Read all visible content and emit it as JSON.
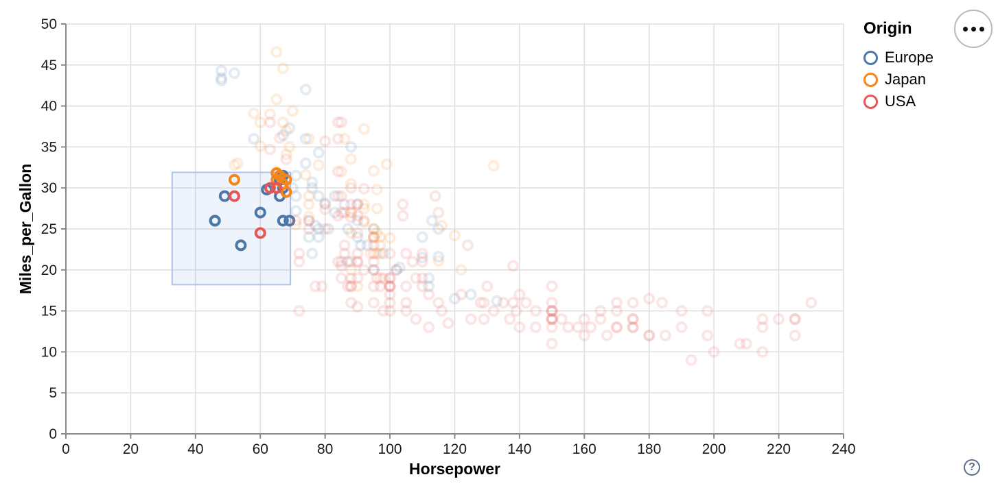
{
  "chart_data": {
    "type": "scatter",
    "title": "",
    "xlabel": "Horsepower",
    "ylabel": "Miles_per_Gallon",
    "xlim": [
      0,
      240
    ],
    "ylim": [
      0,
      50
    ],
    "x_ticks": [
      0,
      20,
      40,
      60,
      80,
      100,
      120,
      140,
      160,
      180,
      200,
      220,
      240
    ],
    "y_ticks": [
      0,
      5,
      10,
      15,
      20,
      25,
      30,
      35,
      40,
      45,
      50
    ],
    "grid": true,
    "point_style": {
      "shape": "circle-stroke",
      "radius": 6.5,
      "stroke_width": 4,
      "faded_opacity": 0.15,
      "selected_opacity": 1
    },
    "colors": {
      "grid": "#dddddd",
      "axis": "#888888",
      "tick_label": "#1b1b1b",
      "brush_fill": "rgba(120,160,230,0.12)",
      "brush_stroke": "#aec3ec"
    },
    "brush_selection": {
      "hp_range": [
        32.8,
        69.3
      ],
      "mpg_range": [
        18.2,
        31.9
      ]
    },
    "legend": {
      "title": "Origin",
      "position": "top-right",
      "entries": [
        {
          "label": "Europe",
          "color": "#4c78a8"
        },
        {
          "label": "Japan",
          "color": "#f58518"
        },
        {
          "label": "USA",
          "color": "#e45756"
        }
      ]
    },
    "series": [
      {
        "name": "Europe",
        "color": "#4c78a8",
        "points": [
          [
            46,
            26
          ],
          [
            87,
            25
          ],
          [
            90,
            24
          ],
          [
            95,
            25
          ],
          [
            113,
            26
          ],
          [
            90,
            28
          ],
          [
            70,
            30
          ],
          [
            76,
            30
          ],
          [
            60,
            27
          ],
          [
            54,
            23
          ],
          [
            112,
            18
          ],
          [
            76,
            22
          ],
          [
            87,
            21
          ],
          [
            69,
            26
          ],
          [
            90,
            26
          ],
          [
            49,
            29
          ],
          [
            75,
            24
          ],
          [
            95,
            20
          ],
          [
            112,
            19
          ],
          [
            110,
            24
          ],
          [
            46,
            26
          ],
          [
            83,
            29
          ],
          [
            67,
            26
          ],
          [
            78,
            24
          ],
          [
            66,
            29
          ],
          [
            75,
            26
          ],
          [
            66,
            31
          ],
          [
            78,
            25
          ],
          [
            98,
            22
          ],
          [
            115,
            25
          ],
          [
            86,
            28
          ],
          [
            81,
            25
          ],
          [
            93,
            23
          ],
          [
            83,
            27
          ],
          [
            71,
            29
          ],
          [
            91,
            23
          ],
          [
            120,
            16.5
          ],
          [
            58,
            36
          ],
          [
            78,
            29
          ],
          [
            115,
            21.6
          ],
          [
            110,
            21.5
          ],
          [
            48,
            43.1
          ],
          [
            103,
            20.3
          ],
          [
            125,
            17
          ],
          [
            48,
            43.4
          ],
          [
            48,
            44.3
          ],
          [
            133,
            16.2
          ],
          [
            71,
            31.5
          ],
          [
            62,
            29.8
          ],
          [
            78,
            34.3
          ],
          [
            69,
            37.3
          ],
          [
            52,
            44
          ],
          [
            67,
            30
          ],
          [
            88,
            35
          ],
          [
            74,
            33
          ],
          [
            80,
            28.1
          ],
          [
            76,
            30.7
          ],
          [
            74,
            36
          ],
          [
            71,
            27.2
          ],
          [
            77,
            25.4
          ],
          [
            67,
            36.4
          ],
          [
            74,
            42
          ],
          [
            102,
            20
          ],
          [
            67,
            31.5
          ]
        ]
      },
      {
        "name": "Japan",
        "color": "#f58518",
        "points": [
          [
            88,
            27
          ],
          [
            95,
            24
          ],
          [
            88,
            27
          ],
          [
            95,
            25
          ],
          [
            65,
            31
          ],
          [
            69,
            35
          ],
          [
            95,
            24
          ],
          [
            92,
            28
          ],
          [
            97,
            23
          ],
          [
            97,
            19
          ],
          [
            88,
            20
          ],
          [
            94,
            22
          ],
          [
            90,
            18
          ],
          [
            122,
            20
          ],
          [
            65,
            32
          ],
          [
            97,
            24
          ],
          [
            53,
            33
          ],
          [
            75,
            29
          ],
          [
            96,
            22
          ],
          [
            71,
            25.5
          ],
          [
            52,
            32.8
          ],
          [
            65,
            46.6
          ],
          [
            67,
            44.6
          ],
          [
            65,
            40.8
          ],
          [
            70,
            39.4
          ],
          [
            68,
            29.5
          ],
          [
            115,
            21.1
          ],
          [
            132,
            32.7
          ],
          [
            100,
            23.9
          ],
          [
            74,
            31.6
          ],
          [
            60,
            35.1
          ],
          [
            67,
            38
          ],
          [
            75,
            36
          ],
          [
            116,
            25.4
          ],
          [
            96,
            29.8
          ],
          [
            75,
            26.5
          ],
          [
            67,
            30.5
          ],
          [
            66,
            31.5
          ],
          [
            68,
            31
          ],
          [
            65,
            31.8
          ],
          [
            52,
            31
          ],
          [
            58,
            39.1
          ],
          [
            63,
            39
          ],
          [
            60,
            38
          ],
          [
            96,
            24.5
          ],
          [
            97,
            22
          ],
          [
            68,
            37
          ],
          [
            88,
            30.5
          ],
          [
            85,
            32
          ],
          [
            92,
            27.5
          ],
          [
            75,
            28
          ],
          [
            88,
            24.5
          ],
          [
            92,
            25.8
          ],
          [
            120,
            24.2
          ],
          [
            68,
            34.1
          ],
          [
            78,
            32.8
          ],
          [
            99,
            32.9
          ],
          [
            95,
            32.1
          ],
          [
            96,
            27.5
          ],
          [
            92,
            37.2
          ],
          [
            86,
            36
          ],
          [
            88,
            33.5
          ]
        ]
      },
      {
        "name": "USA",
        "color": "#e45756",
        "points": [
          [
            130,
            18
          ],
          [
            165,
            15
          ],
          [
            150,
            18
          ],
          [
            150,
            16
          ],
          [
            140,
            17
          ],
          [
            198,
            15
          ],
          [
            220,
            14
          ],
          [
            215,
            14
          ],
          [
            225,
            14
          ],
          [
            190,
            15
          ],
          [
            170,
            15
          ],
          [
            160,
            14
          ],
          [
            150,
            15
          ],
          [
            225,
            14
          ],
          [
            175,
            14
          ],
          [
            153,
            14
          ],
          [
            175,
            13
          ],
          [
            170,
            13
          ],
          [
            180,
            12
          ],
          [
            165,
            14
          ],
          [
            208,
            11
          ],
          [
            155,
            13
          ],
          [
            160,
            12
          ],
          [
            190,
            13
          ],
          [
            150,
            14
          ],
          [
            167,
            12
          ],
          [
            170,
            13
          ],
          [
            180,
            12
          ],
          [
            150,
            11
          ],
          [
            230,
            16
          ],
          [
            215,
            10
          ],
          [
            200,
            10
          ],
          [
            210,
            11
          ],
          [
            193,
            9
          ],
          [
            225,
            12
          ],
          [
            215,
            13
          ],
          [
            198,
            12
          ],
          [
            158,
            13
          ],
          [
            150,
            13
          ],
          [
            145,
            13
          ],
          [
            137,
            14
          ],
          [
            150,
            15
          ],
          [
            140,
            13
          ],
          [
            150,
            14
          ],
          [
            145,
            15
          ],
          [
            175,
            13
          ],
          [
            175,
            14
          ],
          [
            150,
            14
          ],
          [
            150,
            15
          ],
          [
            142,
            16
          ],
          [
            97,
            18
          ],
          [
            85,
            21
          ],
          [
            95,
            22
          ],
          [
            95,
            24
          ],
          [
            90,
            21
          ],
          [
            100,
            19
          ],
          [
            105,
            16
          ],
          [
            100,
            17
          ],
          [
            88,
            19
          ],
          [
            100,
            18
          ],
          [
            110,
            18
          ],
          [
            72,
            22
          ],
          [
            100,
            19
          ],
          [
            88,
            18
          ],
          [
            86,
            23
          ],
          [
            71,
            26
          ],
          [
            80,
            25
          ],
          [
            90,
            28
          ],
          [
            86,
            22
          ],
          [
            80,
            28
          ],
          [
            105,
            18
          ],
          [
            100,
            16
          ],
          [
            100,
            18
          ],
          [
            88,
            18
          ],
          [
            95,
            23
          ],
          [
            100,
            18
          ],
          [
            90,
            21
          ],
          [
            85,
            19
          ],
          [
            107,
            21
          ],
          [
            72,
            21
          ],
          [
            75,
            25
          ],
          [
            95,
            18
          ],
          [
            110,
            19
          ],
          [
            105,
            22
          ],
          [
            100,
            22
          ],
          [
            98,
            19
          ],
          [
            95,
            21
          ],
          [
            102,
            20
          ],
          [
            108,
            19
          ],
          [
            110,
            21
          ],
          [
            110,
            22
          ],
          [
            88,
            21
          ],
          [
            90,
            22
          ],
          [
            95,
            20
          ],
          [
            85,
            20.5
          ],
          [
            84,
            21
          ],
          [
            92,
            20
          ],
          [
            96,
            19
          ],
          [
            90,
            19
          ],
          [
            87,
            18
          ],
          [
            66,
            36.1
          ],
          [
            63,
            34.7
          ],
          [
            63,
            38
          ],
          [
            84,
            36
          ],
          [
            84,
            38
          ],
          [
            85,
            38
          ],
          [
            88,
            26.4
          ],
          [
            84,
            26.6
          ],
          [
            86,
            27
          ],
          [
            88,
            28
          ],
          [
            84,
            29
          ],
          [
            90,
            24.5
          ],
          [
            92,
            26
          ],
          [
            75,
            26
          ],
          [
            68,
            33.5
          ],
          [
            90,
            26.6
          ],
          [
            88,
            30
          ],
          [
            85,
            29
          ],
          [
            85,
            27
          ],
          [
            80,
            27.4
          ],
          [
            84,
            32
          ],
          [
            92,
            29.9
          ],
          [
            52,
            29
          ],
          [
            60,
            24.5
          ],
          [
            63,
            30
          ],
          [
            65,
            30
          ],
          [
            72,
            15
          ],
          [
            77,
            18
          ],
          [
            79,
            18
          ],
          [
            100,
            15
          ],
          [
            95,
            16
          ],
          [
            90,
            15.5
          ],
          [
            88,
            16
          ],
          [
            98,
            15
          ],
          [
            105,
            15
          ],
          [
            112,
            17
          ],
          [
            115,
            16
          ],
          [
            116,
            15
          ],
          [
            125,
            14
          ],
          [
            128,
            16
          ],
          [
            122,
            17
          ],
          [
            118,
            13.5
          ],
          [
            112,
            13
          ],
          [
            108,
            14
          ],
          [
            139,
            15
          ],
          [
            135,
            16
          ],
          [
            132,
            15
          ],
          [
            129,
            14
          ],
          [
            162,
            13
          ],
          [
            185,
            12
          ],
          [
            175,
            16
          ],
          [
            180,
            16.5
          ],
          [
            170,
            16
          ],
          [
            184,
            16
          ],
          [
            138,
            16
          ],
          [
            129,
            16
          ],
          [
            114,
            29
          ],
          [
            104,
            28
          ],
          [
            104,
            26.6
          ],
          [
            115,
            27
          ],
          [
            124,
            23
          ],
          [
            138,
            20.5
          ],
          [
            80,
            35.7
          ]
        ]
      }
    ]
  },
  "controls": {
    "help_label": "?"
  }
}
